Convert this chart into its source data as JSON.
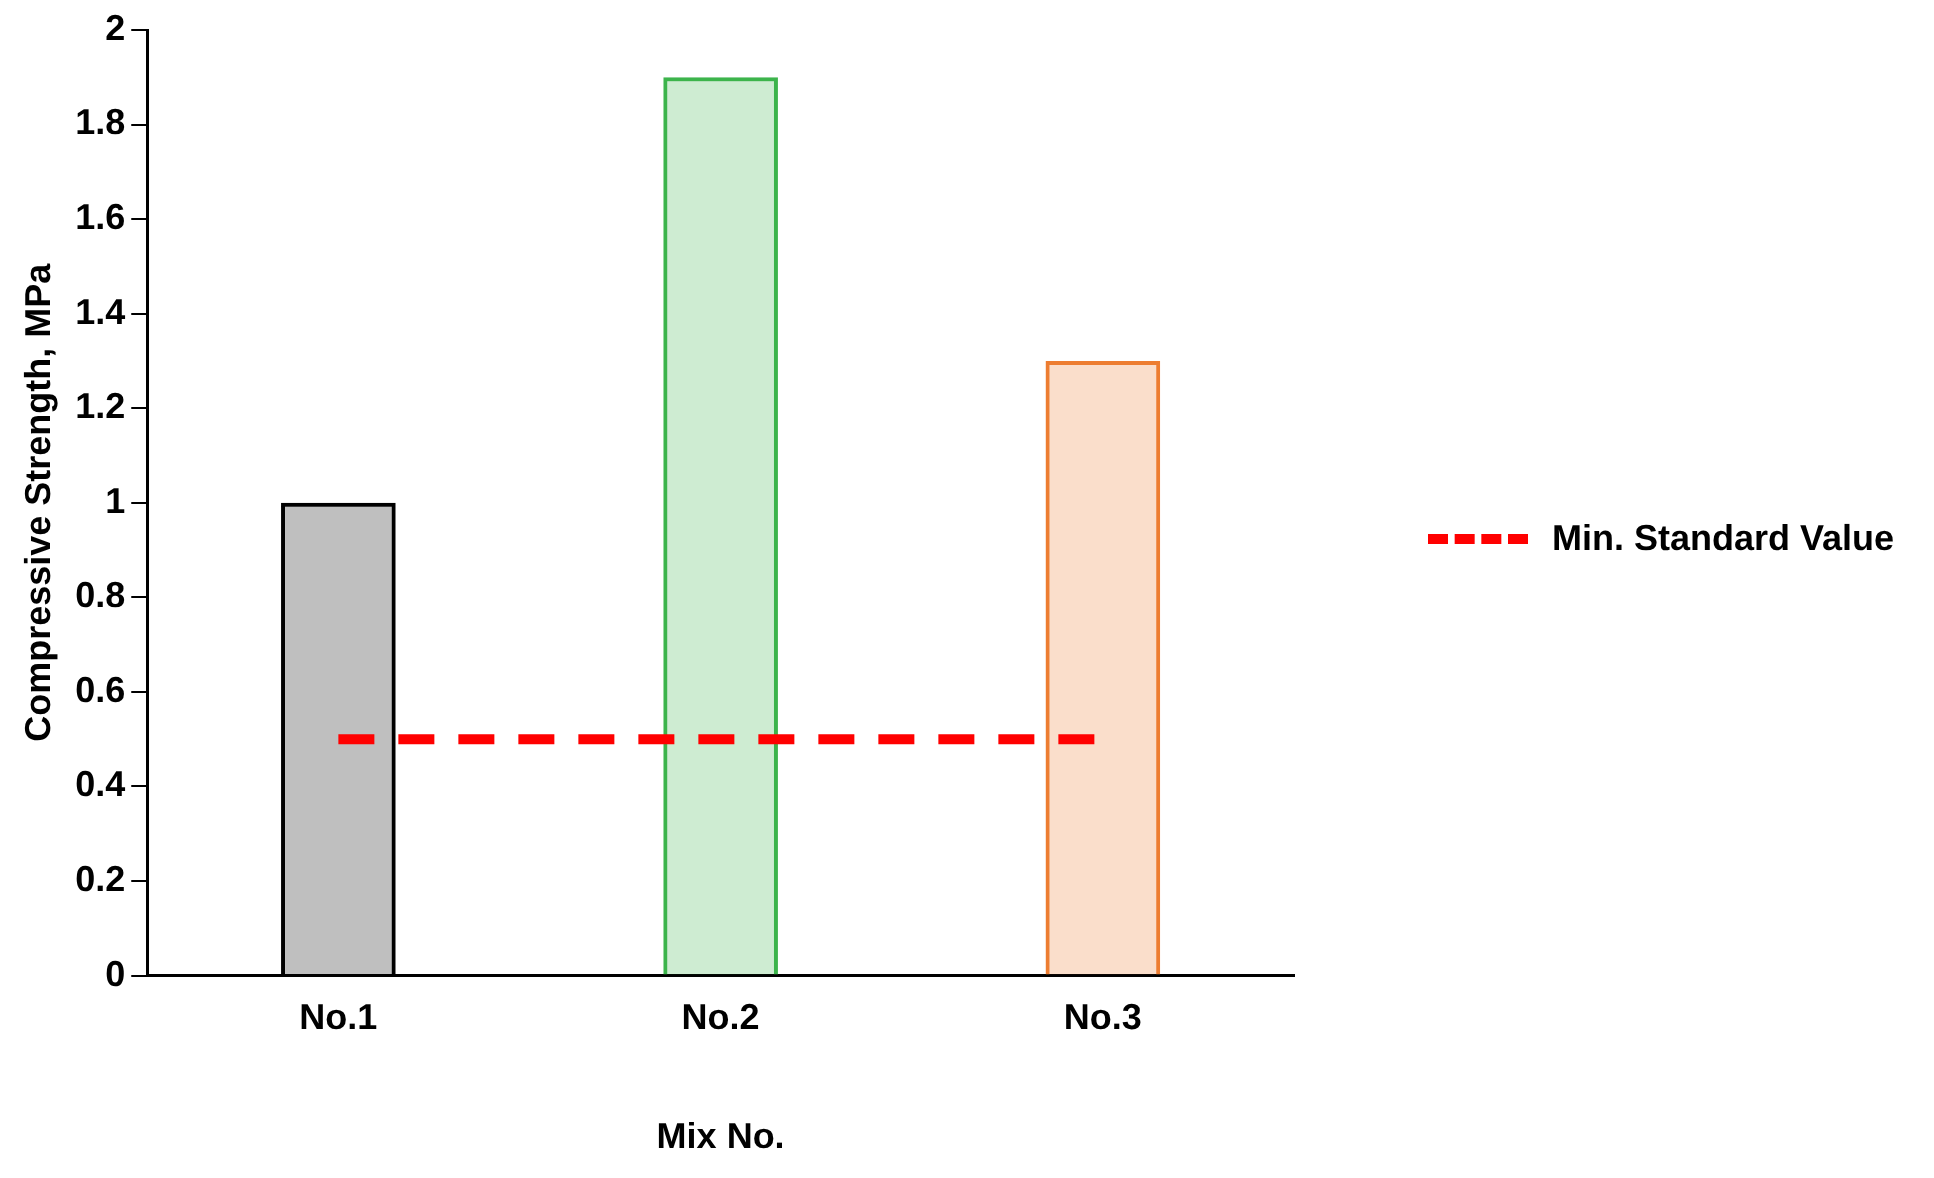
{
  "chart_data": {
    "type": "bar",
    "xlabel": "Mix No.",
    "ylabel": "Compressive Strength, MPa",
    "categories": [
      "No.1",
      "No.2",
      "No.3"
    ],
    "series": [
      {
        "colors": [
          "#000000",
          "#3cb44b",
          "#ed7d31"
        ],
        "values": [
          1,
          1.9,
          1.3
        ]
      },
      {
        "type": "line",
        "name": "Min. Standard Value",
        "color": "#ff0000",
        "values": [
          0.5,
          0.5,
          0.5
        ],
        "line_style": "dashed",
        "marker": "none"
      }
    ],
    "ylim": [
      0,
      2
    ],
    "yticks": [
      0,
      0.2,
      0.4,
      0.6,
      0.8,
      1,
      1.2,
      1.4,
      1.6,
      1.8,
      2
    ],
    "grid": false,
    "legend": "right"
  }
}
